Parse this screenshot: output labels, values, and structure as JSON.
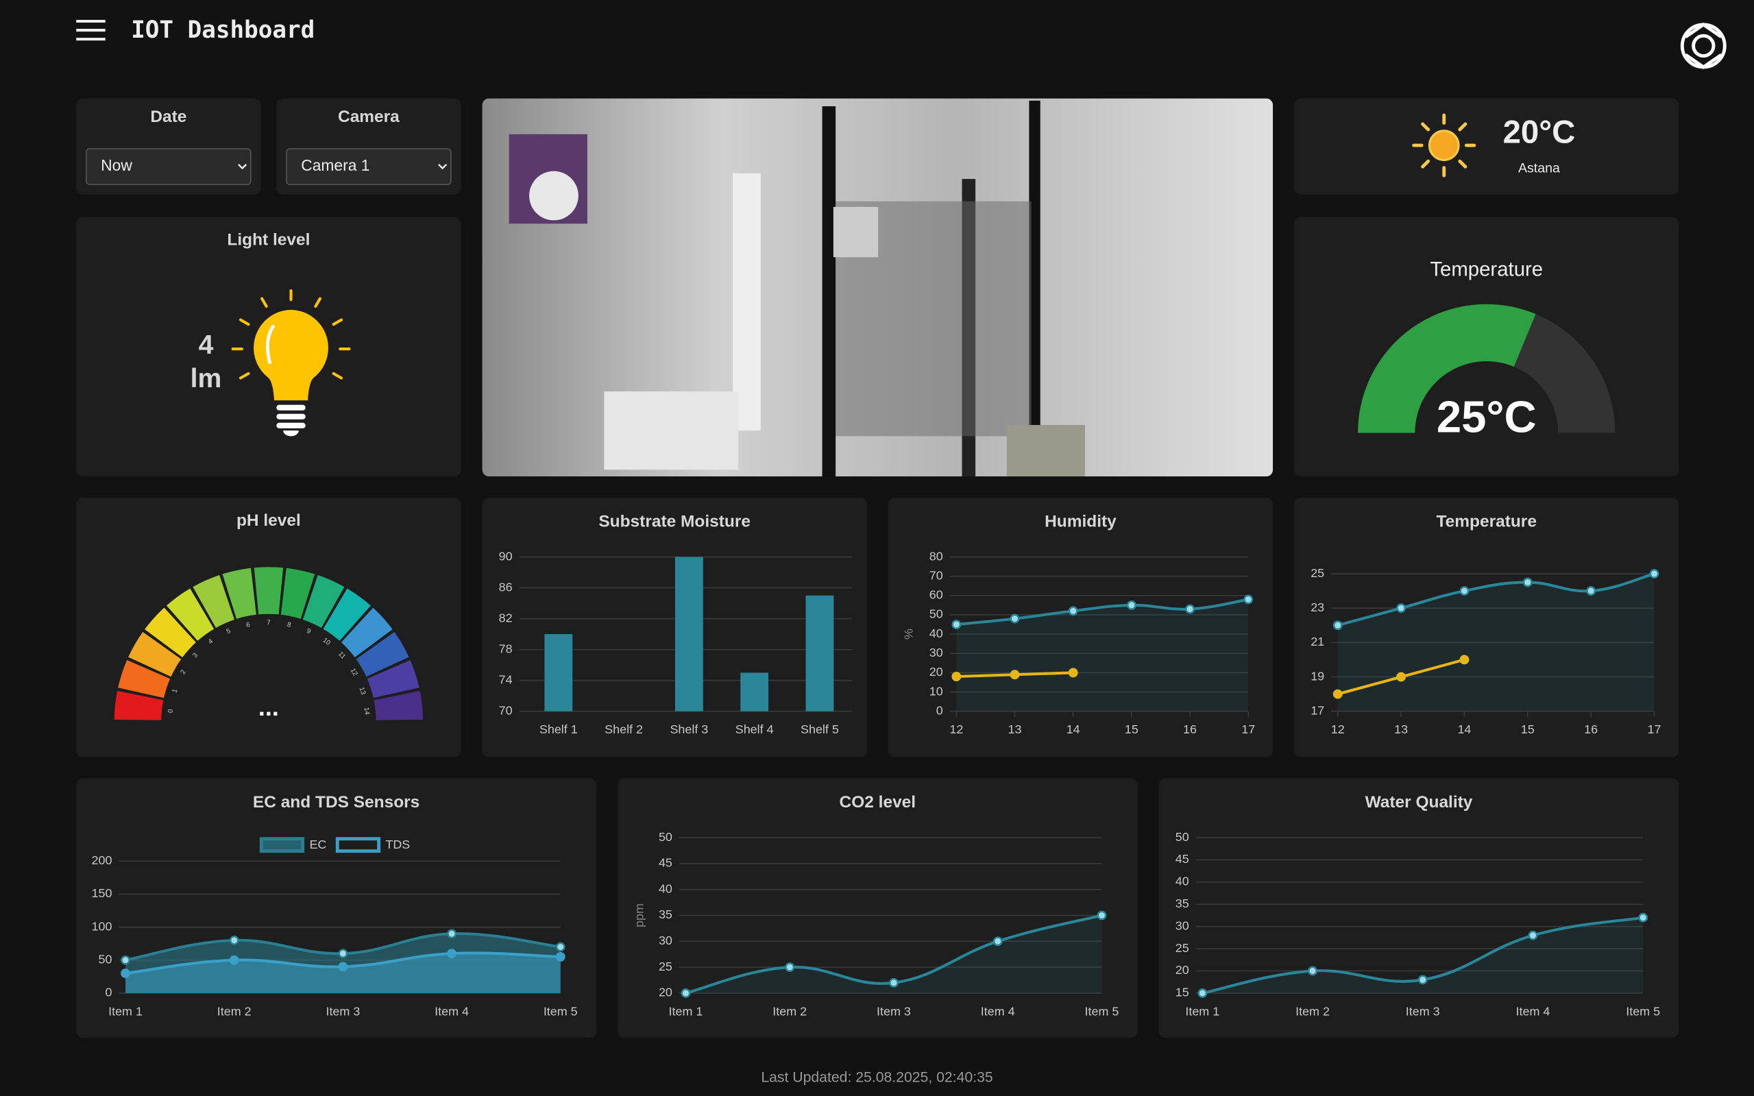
{
  "header": {
    "title": "IOT Dashboard"
  },
  "date": {
    "label": "Date",
    "value": "Now"
  },
  "camera": {
    "label": "Camera",
    "value": "Camera 1"
  },
  "weather": {
    "temperature": "20°C",
    "city": "Astana"
  },
  "light": {
    "title": "Light level",
    "value": 4,
    "unit": "lm"
  },
  "gauge": {
    "title": "Temperature",
    "value": 25,
    "value_label": "25°C",
    "lim": [
      0,
      40
    ],
    "color": "#2ea043"
  },
  "ph": {
    "title": "pH level",
    "ticks": [
      0,
      1,
      2,
      3,
      4,
      5,
      6,
      7,
      8,
      9,
      10,
      11,
      12,
      13,
      14
    ],
    "value_label": "...",
    "colors": [
      "#e31a1c",
      "#f26b1d",
      "#f0a821",
      "#eed31b",
      "#cadc2a",
      "#9bcb3b",
      "#6bbf45",
      "#3fb04a",
      "#28a84c",
      "#1fae7a",
      "#13b3ad",
      "#3b93d1",
      "#3461b8",
      "#4b3fa3",
      "#4a2f8a"
    ]
  },
  "chart_data": [
    {
      "type": "bar",
      "title": "Substrate Moisture",
      "categories": [
        "Shelf 1",
        "Shelf 2",
        "Shelf 3",
        "Shelf 4",
        "Shelf 5"
      ],
      "values": [
        80,
        null,
        90,
        75,
        85
      ],
      "color": "#2a8799",
      "ylim": [
        70,
        90
      ],
      "yticks": [
        70,
        74,
        78,
        82,
        86,
        90
      ],
      "grid": true
    },
    {
      "type": "line",
      "title": "Humidity",
      "ylabel": "%",
      "x": [
        12,
        13,
        14,
        15,
        16,
        17
      ],
      "xlim": [
        12,
        17
      ],
      "xticks": [
        12,
        13,
        14,
        15,
        16,
        17
      ],
      "series": [
        {
          "color": "#2a8799",
          "values": [
            45,
            48,
            52,
            55,
            53,
            58
          ]
        },
        {
          "color": "#e6b619",
          "values": [
            18,
            19,
            20,
            null,
            null,
            null
          ]
        }
      ],
      "ylim": [
        0,
        80
      ],
      "yticks": [
        0,
        10,
        20,
        30,
        40,
        50,
        60,
        70,
        80
      ],
      "grid": true
    },
    {
      "type": "line",
      "title": "Temperature",
      "x": [
        12,
        13,
        14,
        15,
        16,
        17
      ],
      "xlim": [
        12,
        17
      ],
      "xticks": [
        12,
        13,
        14,
        15,
        16,
        17
      ],
      "series": [
        {
          "color": "#2a8799",
          "values": [
            22,
            23,
            24,
            24.5,
            24,
            25
          ]
        },
        {
          "color": "#e6b619",
          "values": [
            18,
            19,
            20,
            null,
            null,
            null
          ]
        }
      ],
      "ylim": [
        17,
        25
      ],
      "yticks": [
        17,
        19,
        21,
        23,
        25
      ],
      "grid": true
    },
    {
      "type": "line",
      "title": "EC and TDS Sensors",
      "area": true,
      "legend": "top",
      "categories": [
        "Item 1",
        "Item 2",
        "Item 3",
        "Item 4",
        "Item 5"
      ],
      "series": [
        {
          "name": "EC",
          "color": "#2a7f93",
          "values": [
            50,
            80,
            60,
            90,
            70
          ]
        },
        {
          "name": "TDS",
          "color": "#3aa0c8",
          "values": [
            30,
            50,
            40,
            60,
            55
          ]
        }
      ],
      "ylim": [
        0,
        200
      ],
      "yticks": [
        0,
        50,
        100,
        150,
        200
      ],
      "grid": true
    },
    {
      "type": "line",
      "title": "CO2 level",
      "ylabel": "ppm",
      "categories": [
        "Item 1",
        "Item 2",
        "Item 3",
        "Item 4",
        "Item 5"
      ],
      "series": [
        {
          "color": "#2a8799",
          "values": [
            20,
            25,
            22,
            30,
            35
          ]
        }
      ],
      "ylim": [
        20,
        50
      ],
      "yticks": [
        20,
        25,
        30,
        35,
        40,
        45,
        50
      ],
      "grid": true
    },
    {
      "type": "line",
      "title": "Water Quality",
      "categories": [
        "Item 1",
        "Item 2",
        "Item 3",
        "Item 4",
        "Item 5"
      ],
      "series": [
        {
          "color": "#2a8799",
          "values": [
            15,
            20,
            18,
            28,
            32
          ]
        }
      ],
      "ylim": [
        15,
        50
      ],
      "yticks": [
        15,
        20,
        25,
        30,
        35,
        40,
        45,
        50
      ],
      "grid": true
    }
  ],
  "footer": "Last Updated: 25.08.2025, 02:40:35"
}
